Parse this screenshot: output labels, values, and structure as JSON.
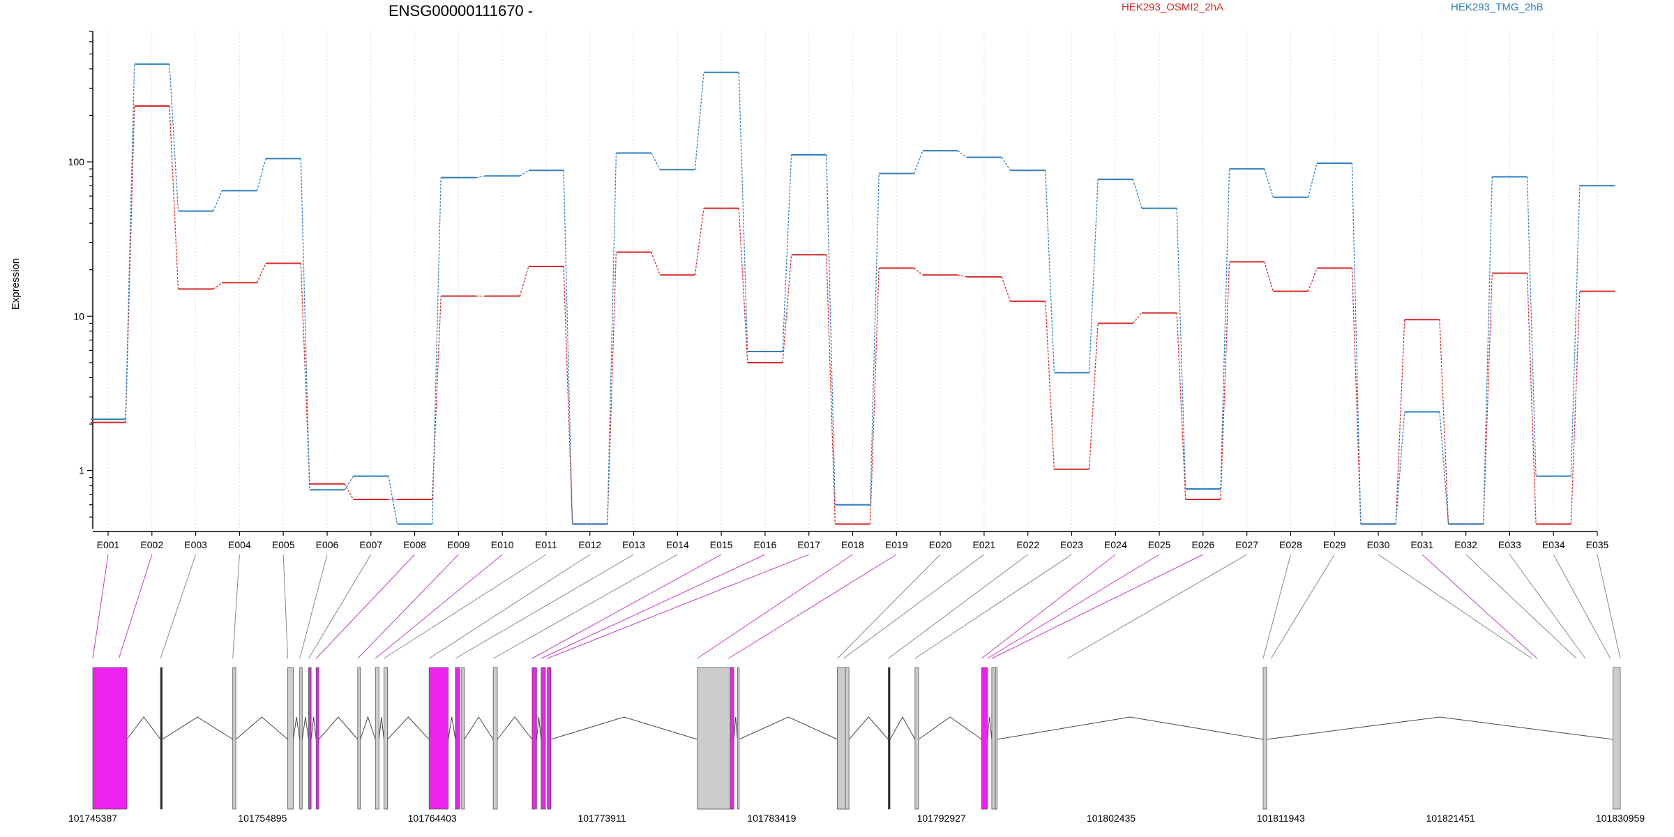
{
  "chart_data": {
    "type": "line",
    "title": "ENSG00000111670 -",
    "ylabel": "Expression",
    "xlabel": "",
    "yscale": "log",
    "ylim": [
      0.42,
      700
    ],
    "yticks": [
      1,
      10,
      100
    ],
    "ytick_labels": [
      "1",
      "10",
      "100"
    ],
    "grid": "vertical dotted lines at each exon",
    "legend_placement": "top",
    "categories": [
      "E001",
      "E002",
      "E003",
      "E004",
      "E005",
      "E006",
      "E007",
      "E008",
      "E009",
      "E010",
      "E011",
      "E012",
      "E013",
      "E014",
      "E015",
      "E016",
      "E017",
      "E018",
      "E019",
      "E020",
      "E021",
      "E022",
      "E023",
      "E024",
      "E025",
      "E026",
      "E027",
      "E028",
      "E029",
      "E030",
      "E031",
      "E032",
      "E033",
      "E034",
      "E035"
    ],
    "series": [
      {
        "name": "HEK293_OSMI2_2hA",
        "color": "#d62728",
        "values": [
          2.05,
          230,
          15,
          16.5,
          22,
          0.82,
          0.65,
          0.65,
          13.5,
          13.5,
          21,
          0.45,
          26,
          18.5,
          50,
          5,
          25,
          0.45,
          20.5,
          18.5,
          18,
          12.5,
          1.02,
          9,
          10.5,
          0.65,
          22.5,
          14.5,
          20.5,
          0.45,
          9.5,
          0.45,
          19,
          0.45,
          14.5
        ]
      },
      {
        "name": "HEK293_TMG_2hB",
        "color": "#2c7fc0",
        "values": [
          2.15,
          430,
          48,
          65,
          105,
          0.75,
          0.92,
          0.45,
          79,
          81,
          88,
          0.45,
          114,
          89,
          380,
          5.9,
          111,
          0.6,
          84,
          118,
          107,
          88,
          4.3,
          77,
          50,
          0.76,
          90,
          59,
          98,
          0.45,
          2.4,
          0.45,
          80,
          0.92,
          70
        ]
      }
    ],
    "exon_highlight": [
      true,
      true,
      false,
      false,
      false,
      false,
      false,
      true,
      true,
      true,
      false,
      false,
      false,
      false,
      true,
      true,
      true,
      true,
      true,
      false,
      false,
      false,
      false,
      true,
      true,
      true,
      false,
      false,
      false,
      false,
      true,
      false,
      false,
      false,
      false
    ],
    "gene_model": {
      "start": 101745387,
      "end": 101830959,
      "coordinate_ticks": [
        "101745387",
        "101754895",
        "101764403",
        "101773911",
        "101783419",
        "101792927",
        "101802435",
        "101811943",
        "101821451",
        "101830959"
      ],
      "exon_starts": [
        101745387,
        101746850,
        101749180,
        101753230,
        101756310,
        101756980,
        101757480,
        101757900,
        101760230,
        101761220,
        101761700,
        101764230,
        101765700,
        101767820,
        101770000,
        101770500,
        101770850,
        101779250,
        101781000,
        101787100,
        101787450,
        101789950,
        101791450,
        101795180,
        101795500,
        101795750,
        101800000,
        101810950,
        101811400,
        101826000,
        101826300,
        101828500,
        101829000,
        101830400,
        101830959
      ],
      "blocks": [
        [
          101745387,
          101747300,
          "#ee22ee"
        ],
        [
          101749180,
          101749280,
          "#222222"
        ],
        [
          101753230,
          101753400,
          "#cccccc"
        ],
        [
          101756310,
          101756620,
          "#cccccc"
        ],
        [
          101756980,
          101757120,
          "#cccccc"
        ],
        [
          101757480,
          101757620,
          "#ee22ee"
        ],
        [
          101757900,
          101758050,
          "#ee22ee"
        ],
        [
          101760230,
          101760380,
          "#cccccc"
        ],
        [
          101761220,
          101761420,
          "#cccccc"
        ],
        [
          101761700,
          101761900,
          "#cccccc"
        ],
        [
          101764230,
          101765300,
          "#ee22ee"
        ],
        [
          101765700,
          101765950,
          "#ee22ee"
        ],
        [
          101766050,
          101766200,
          "#cccccc"
        ],
        [
          101767820,
          101768050,
          "#cccccc"
        ],
        [
          101770000,
          101770250,
          "#ee22ee"
        ],
        [
          101770500,
          101770750,
          "#ee22ee"
        ],
        [
          101770850,
          101771050,
          "#ee22ee"
        ],
        [
          101779250,
          101781100,
          "#cccccc"
        ],
        [
          101781100,
          101781300,
          "#ee22ee"
        ],
        [
          101781500,
          101781600,
          "#cccccc"
        ],
        [
          101787100,
          101787550,
          "#cccccc"
        ],
        [
          101787550,
          101787750,
          "#cccccc"
        ],
        [
          101789950,
          101790050,
          "#222222"
        ],
        [
          101791450,
          101791650,
          "#cccccc"
        ],
        [
          101795180,
          101795500,
          "#ee22ee"
        ],
        [
          101795750,
          101795950,
          "#cccccc"
        ],
        [
          101795950,
          101796050,
          "#cccccc"
        ],
        [
          101810950,
          101811150,
          "#cccccc"
        ],
        [
          101830550,
          101830959,
          "#cccccc"
        ]
      ]
    }
  }
}
